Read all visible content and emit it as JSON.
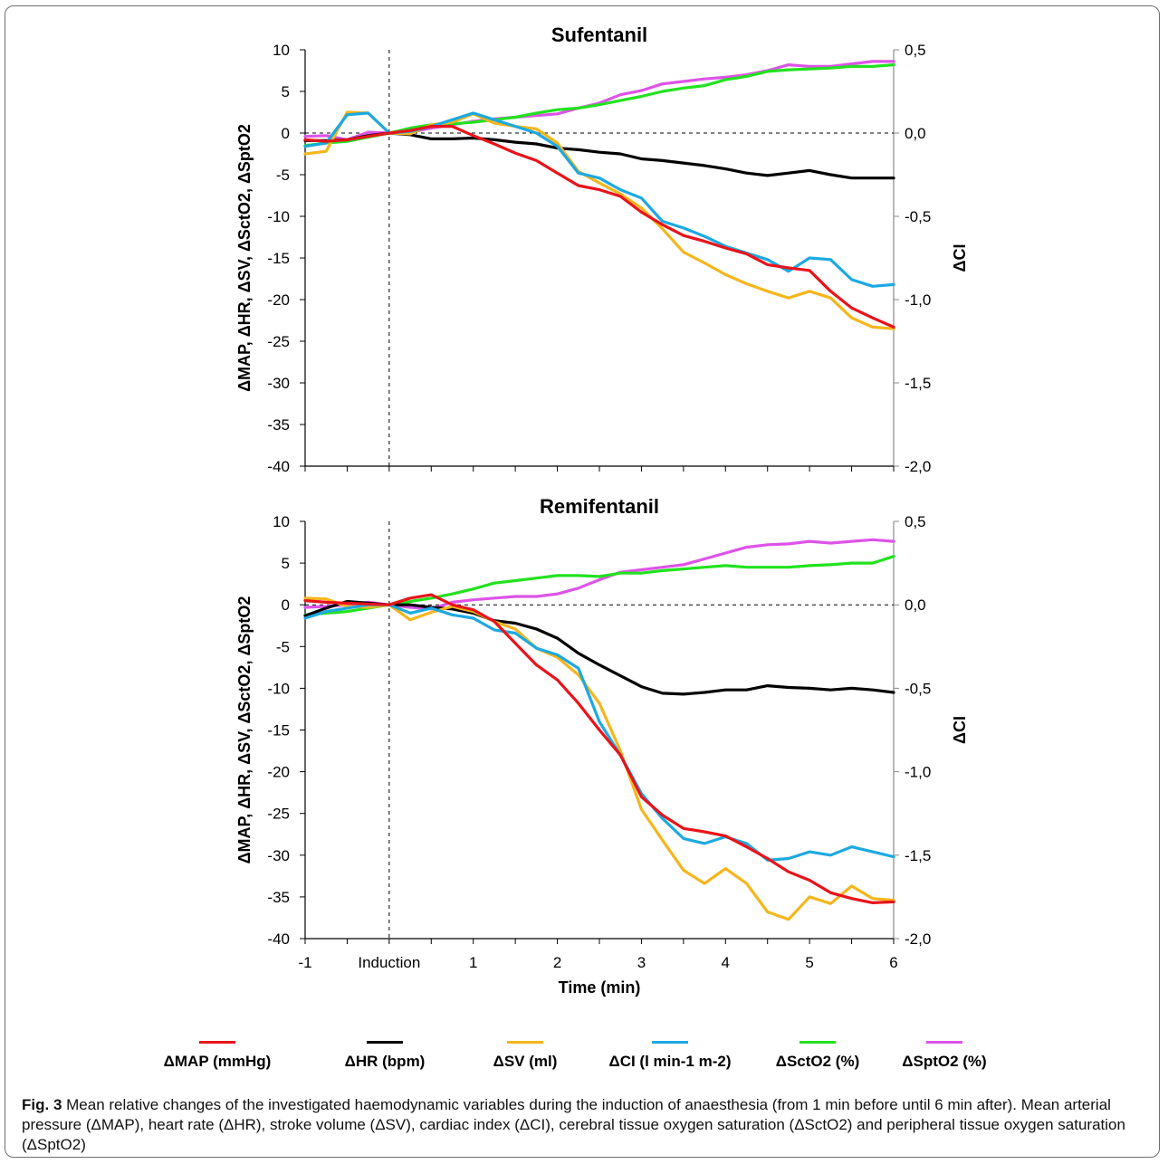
{
  "chart_data": [
    {
      "type": "line",
      "title": "Sufentanil",
      "xlabel": "",
      "ylabel": "ΔMAP, ΔHR, ΔSV, ΔSctO2, ΔSptO2",
      "y2label": "ΔCI",
      "xlim": [
        -1,
        6
      ],
      "ylim": [
        -40,
        10
      ],
      "y2lim": [
        -2.0,
        0.5
      ],
      "x_tick_labels": [
        "-1",
        "Induction",
        "1",
        "2",
        "3",
        "4",
        "5",
        "6"
      ],
      "y_tick_labels": [
        "10",
        "5",
        "0",
        "-5",
        "-10",
        "-15",
        "-20",
        "-25",
        "-30",
        "-35",
        "-40"
      ],
      "y2_tick_labels": [
        "0,5",
        "0,0",
        "-0,5",
        "-1,0",
        "-1,5",
        "-2,0"
      ],
      "induction_x": 0,
      "x": [
        -1,
        -0.75,
        -0.5,
        -0.25,
        0,
        0.25,
        0.5,
        0.75,
        1,
        1.25,
        1.5,
        1.75,
        2,
        2.25,
        2.5,
        2.75,
        3,
        3.25,
        3.5,
        3.75,
        4,
        4.25,
        4.5,
        4.75,
        5,
        5.25,
        5.5,
        5.75,
        6
      ],
      "series": [
        {
          "name": "ΔMAP (mmHg)",
          "color": "#e8141a",
          "axis": "left",
          "values": [
            -0.8,
            -1.0,
            -0.8,
            -0.4,
            0,
            0.3,
            0.8,
            0.8,
            -0.3,
            -1.3,
            -2.4,
            -3.3,
            -4.8,
            -6.3,
            -6.8,
            -7.6,
            -9.5,
            -11.0,
            -12.3,
            -13.0,
            -13.8,
            -14.5,
            -15.8,
            -16.2,
            -16.5,
            -19.0,
            -21.0,
            -22.2,
            -23.3
          ]
        },
        {
          "name": "ΔHR (bpm)",
          "color": "#000000",
          "axis": "left",
          "values": [
            -0.9,
            -0.9,
            -0.8,
            -0.3,
            0,
            -0.2,
            -0.7,
            -0.7,
            -0.6,
            -0.8,
            -1.1,
            -1.3,
            -1.8,
            -2.0,
            -2.3,
            -2.5,
            -3.1,
            -3.3,
            -3.6,
            -3.9,
            -4.3,
            -4.8,
            -5.1,
            -4.8,
            -4.5,
            -5.0,
            -5.4,
            -5.4,
            -5.4
          ]
        },
        {
          "name": "ΔSV (ml)",
          "color": "#f5b61c",
          "axis": "left",
          "values": [
            -2.5,
            -2.2,
            2.5,
            2.4,
            0,
            -0.1,
            1.0,
            1.3,
            2.3,
            1.2,
            0.8,
            0.5,
            -1.2,
            -4.6,
            -6.0,
            -7.3,
            -9.0,
            -11.5,
            -14.3,
            -15.6,
            -17.0,
            -18.1,
            -19.0,
            -19.8,
            -19.0,
            -19.8,
            -22.2,
            -23.3,
            -23.5
          ]
        },
        {
          "name": "ΔCI (l min-1 m-2)",
          "color": "#1ca9e1",
          "axis": "right",
          "values": [
            -0.08,
            -0.06,
            0.11,
            0.12,
            0,
            0.01,
            0.04,
            0.08,
            0.12,
            0.08,
            0.04,
            0.0,
            -0.08,
            -0.24,
            -0.27,
            -0.34,
            -0.39,
            -0.53,
            -0.57,
            -0.62,
            -0.68,
            -0.72,
            -0.76,
            -0.83,
            -0.75,
            -0.76,
            -0.88,
            -0.92,
            -0.91
          ]
        },
        {
          "name": "ΔSctO2 (%)",
          "color": "#22e21f",
          "axis": "left",
          "values": [
            -1.5,
            -1.2,
            -1.0,
            -0.5,
            0,
            0.6,
            1.0,
            1.1,
            1.3,
            1.6,
            1.9,
            2.4,
            2.8,
            3.0,
            3.4,
            3.9,
            4.4,
            5.0,
            5.4,
            5.7,
            6.4,
            6.8,
            7.4,
            7.6,
            7.7,
            7.8,
            8.0,
            8.0,
            8.2
          ]
        },
        {
          "name": "ΔSptO2 (%)",
          "color": "#dd53e8",
          "axis": "left",
          "values": [
            -0.4,
            -0.3,
            -0.8,
            0.1,
            0,
            0.1,
            0.6,
            1.0,
            1.4,
            1.7,
            1.9,
            2.1,
            2.3,
            3.0,
            3.6,
            4.6,
            5.1,
            5.9,
            6.2,
            6.5,
            6.7,
            7.0,
            7.5,
            8.2,
            8.0,
            8.0,
            8.3,
            8.6,
            8.6
          ]
        }
      ]
    },
    {
      "type": "line",
      "title": "Remifentanil",
      "xlabel": "Time (min)",
      "ylabel": "ΔMAP, ΔHR, ΔSV, ΔSctO2, ΔSptO2",
      "y2label": "ΔCI",
      "xlim": [
        -1,
        6
      ],
      "ylim": [
        -40,
        10
      ],
      "y2lim": [
        -2.0,
        0.5
      ],
      "x_tick_labels": [
        "-1",
        "Induction",
        "1",
        "2",
        "3",
        "4",
        "5",
        "6"
      ],
      "y_tick_labels": [
        "10",
        "5",
        "0",
        "-5",
        "-10",
        "-15",
        "-20",
        "-25",
        "-30",
        "-35",
        "-40"
      ],
      "y2_tick_labels": [
        "0,5",
        "0,0",
        "-0,5",
        "-1,0",
        "-1,5",
        "-2,0"
      ],
      "induction_x": 0,
      "x": [
        -1,
        -0.75,
        -0.5,
        -0.25,
        0,
        0.25,
        0.5,
        0.75,
        1,
        1.25,
        1.5,
        1.75,
        2,
        2.25,
        2.5,
        2.75,
        3,
        3.25,
        3.5,
        3.75,
        4,
        4.25,
        4.5,
        4.75,
        5,
        5.25,
        5.5,
        5.75,
        6
      ],
      "series": [
        {
          "name": "ΔMAP (mmHg)",
          "color": "#e8141a",
          "axis": "left",
          "values": [
            0.5,
            0.3,
            0.2,
            0.1,
            0,
            0.8,
            1.2,
            0.0,
            -0.6,
            -2.0,
            -4.6,
            -7.2,
            -9.0,
            -11.8,
            -15.0,
            -18.0,
            -23.0,
            -25.2,
            -26.8,
            -27.2,
            -27.7,
            -29.0,
            -30.4,
            -32.0,
            -33.0,
            -34.5,
            -35.2,
            -35.7,
            -35.6
          ]
        },
        {
          "name": "ΔHR (bpm)",
          "color": "#000000",
          "axis": "left",
          "values": [
            -1.3,
            -0.4,
            0.4,
            0.2,
            0,
            0.0,
            -0.3,
            -0.5,
            -1.0,
            -1.9,
            -2.2,
            -2.9,
            -4.0,
            -5.8,
            -7.2,
            -8.5,
            -9.8,
            -10.6,
            -10.7,
            -10.5,
            -10.2,
            -10.2,
            -9.7,
            -9.9,
            -10.0,
            -10.2,
            -10.0,
            -10.2,
            -10.5
          ]
        },
        {
          "name": "ΔSV (ml)",
          "color": "#f5b61c",
          "axis": "left",
          "values": [
            0.8,
            0.7,
            -0.2,
            -0.3,
            0,
            -1.8,
            -0.9,
            -0.2,
            -0.8,
            -2.0,
            -2.9,
            -5.2,
            -6.3,
            -8.4,
            -11.8,
            -17.5,
            -24.5,
            -28.2,
            -31.8,
            -33.4,
            -31.6,
            -33.4,
            -36.8,
            -37.7,
            -35.0,
            -35.8,
            -33.7,
            -35.2,
            -35.4
          ]
        },
        {
          "name": "ΔCI (l min-1 m-2)",
          "color": "#1ca9e1",
          "axis": "right",
          "values": [
            -0.08,
            -0.04,
            -0.02,
            0.0,
            0,
            -0.05,
            -0.02,
            -0.06,
            -0.08,
            -0.15,
            -0.17,
            -0.26,
            -0.3,
            -0.38,
            -0.7,
            -0.9,
            -1.13,
            -1.28,
            -1.4,
            -1.43,
            -1.39,
            -1.43,
            -1.53,
            -1.52,
            -1.48,
            -1.5,
            -1.45,
            -1.48,
            -1.51
          ]
        },
        {
          "name": "ΔSctO2 (%)",
          "color": "#22e21f",
          "axis": "left",
          "values": [
            -1.2,
            -1.0,
            -0.8,
            -0.4,
            0,
            0.4,
            0.8,
            1.3,
            1.9,
            2.6,
            2.9,
            3.2,
            3.5,
            3.5,
            3.4,
            3.8,
            3.8,
            4.1,
            4.3,
            4.5,
            4.7,
            4.5,
            4.5,
            4.5,
            4.7,
            4.8,
            5.0,
            5.0,
            5.8
          ]
        },
        {
          "name": "ΔSptO2 (%)",
          "color": "#dd53e8",
          "axis": "left",
          "values": [
            -0.3,
            -0.2,
            0.0,
            0.3,
            0,
            -0.3,
            -0.5,
            0.3,
            0.6,
            0.8,
            1.0,
            1.0,
            1.3,
            2.0,
            3.0,
            3.9,
            4.2,
            4.5,
            4.8,
            5.5,
            6.2,
            6.9,
            7.2,
            7.3,
            7.6,
            7.4,
            7.6,
            7.8,
            7.6
          ]
        }
      ]
    }
  ],
  "legend": {
    "items": [
      {
        "label": "ΔMAP (mmHg)",
        "color": "#e8141a"
      },
      {
        "label": "ΔHR (bpm)",
        "color": "#000000"
      },
      {
        "label": "ΔSV (ml)",
        "color": "#f5b61c"
      },
      {
        "label": "ΔCI (l min-1 m-2)",
        "color": "#1ca9e1"
      },
      {
        "label": "ΔSctO2 (%)",
        "color": "#22e21f"
      },
      {
        "label": "ΔSptO2 (%)",
        "color": "#dd53e8"
      }
    ]
  },
  "caption": {
    "fig_label": "Fig. 3",
    "text": "Mean relative changes of the investigated haemodynamic variables during the induction of anaesthesia (from 1 min before until 6 min after). Mean arterial pressure (ΔMAP), heart rate (ΔHR), stroke volume (ΔSV), cardiac index (ΔCI), cerebral tissue oxygen saturation (ΔSctO2) and peripheral tissue oxygen saturation (ΔSptO2)"
  }
}
